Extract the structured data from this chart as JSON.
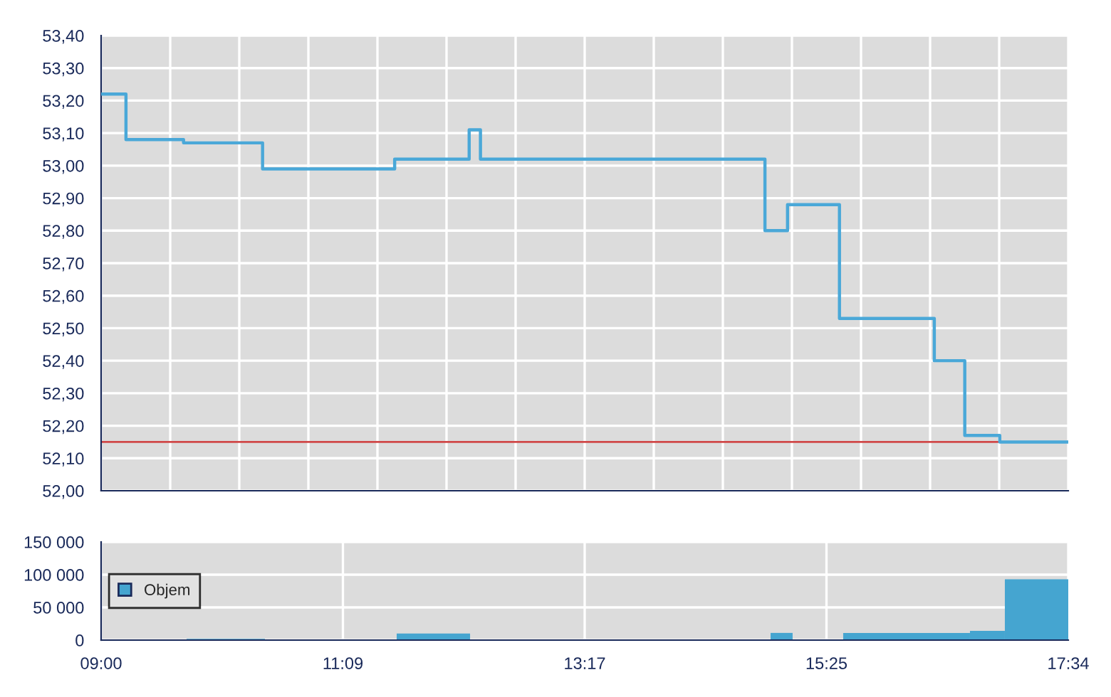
{
  "chart_data": [
    {
      "type": "step",
      "x": [
        9.0,
        9.22,
        9.73,
        10.43,
        11.6,
        12.26,
        12.36,
        14.88,
        15.08,
        15.54,
        16.38,
        16.65,
        16.96,
        17.5667
      ],
      "series": [
        {
          "color": "#4aa8d8",
          "values": [
            53.22,
            53.08,
            53.07,
            52.99,
            53.02,
            53.11,
            53.02,
            52.8,
            52.88,
            52.53,
            52.4,
            52.17,
            52.15,
            52.15
          ]
        }
      ],
      "xlim": [
        9.0,
        17.5667
      ],
      "xticks": [
        {
          "value": 9.0,
          "label": null
        },
        {
          "value": 9.6119,
          "label": null
        },
        {
          "value": 10.2238,
          "label": null
        },
        {
          "value": 10.8357,
          "label": null
        },
        {
          "value": 11.4476,
          "label": null
        },
        {
          "value": 12.0595,
          "label": null
        },
        {
          "value": 12.6714,
          "label": null
        },
        {
          "value": 13.2833,
          "label": null
        },
        {
          "value": 13.8952,
          "label": null
        },
        {
          "value": 14.5071,
          "label": null
        },
        {
          "value": 15.119,
          "label": null
        },
        {
          "value": 15.731,
          "label": null
        },
        {
          "value": 16.3429,
          "label": null
        },
        {
          "value": 16.9548,
          "label": null
        },
        {
          "value": 17.5667,
          "label": null
        }
      ],
      "ylim": [
        52.0,
        53.4
      ],
      "yticks": [
        {
          "value": 52.0,
          "label": "52,00"
        },
        {
          "value": 52.1,
          "label": "52,10"
        },
        {
          "value": 52.2,
          "label": "52,20"
        },
        {
          "value": 52.3,
          "label": "52,30"
        },
        {
          "value": 52.4,
          "label": "52,40"
        },
        {
          "value": 52.5,
          "label": "52,50"
        },
        {
          "value": 52.6,
          "label": "52,60"
        },
        {
          "value": 52.7,
          "label": "52,70"
        },
        {
          "value": 52.8,
          "label": "52,80"
        },
        {
          "value": 52.9,
          "label": "52,90"
        },
        {
          "value": 53.0,
          "label": "53,00"
        },
        {
          "value": 53.1,
          "label": "53,10"
        },
        {
          "value": 53.2,
          "label": "53,20"
        },
        {
          "value": 53.3,
          "label": "53,30"
        },
        {
          "value": 53.4,
          "label": "53,40"
        }
      ],
      "ref_lines": [
        {
          "axis": "y",
          "value": 52.15,
          "color": "#d04848"
        }
      ],
      "tick_labels": "y",
      "grid": true
    },
    {
      "type": "histogram",
      "bins": [
        9.757,
        10.451,
        11.618,
        12.268,
        14.93,
        15.125,
        15.573,
        16.696,
        17.005,
        17.5667
      ],
      "series": [
        {
          "name": "Objem",
          "color": "#45a5d0",
          "values": [
            2000,
            0,
            10000,
            0,
            11000,
            0,
            11000,
            14000,
            93000
          ]
        }
      ],
      "xlim": [
        9.0,
        17.5667
      ],
      "xticks": [
        {
          "value": 9.0,
          "label": "09:00"
        },
        {
          "value": 11.1417,
          "label": "11:09"
        },
        {
          "value": 13.2833,
          "label": "13:17"
        },
        {
          "value": 15.425,
          "label": "15:25"
        },
        {
          "value": 17.5667,
          "label": "17:34"
        }
      ],
      "ylim": [
        0,
        150000
      ],
      "yticks": [
        0,
        {
          "value": 50000,
          "label": "50 000"
        },
        {
          "value": 100000,
          "label": "100 000"
        },
        {
          "value": 150000,
          "label": "150 000"
        }
      ],
      "legend": "left",
      "grid": true
    }
  ]
}
